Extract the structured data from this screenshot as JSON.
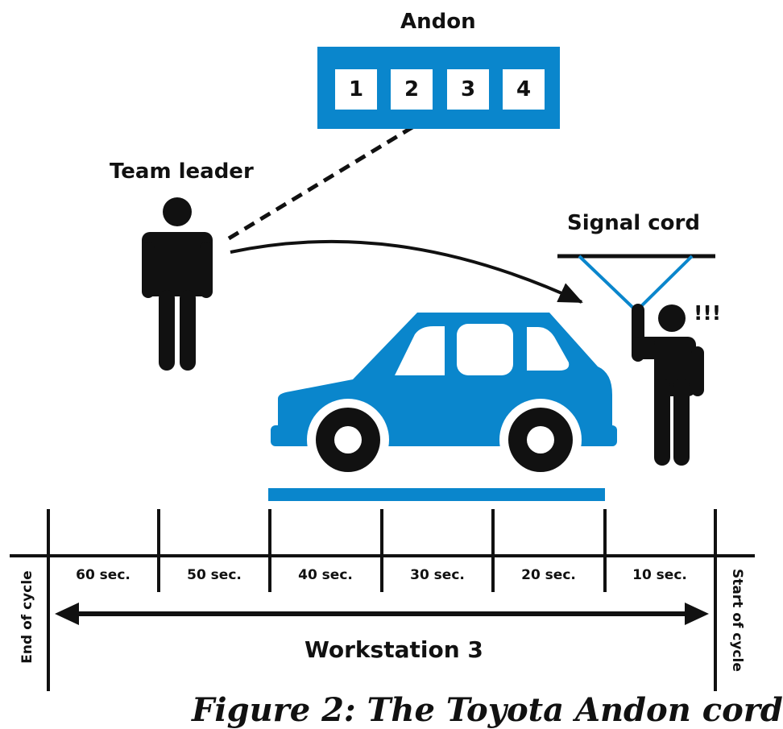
{
  "andon": {
    "title": "Andon",
    "boxes": [
      "1",
      "2",
      "3",
      "4"
    ]
  },
  "team_leader": {
    "label": "Team leader"
  },
  "signal_cord": {
    "label": "Signal cord"
  },
  "alert": {
    "text": "!!!"
  },
  "timeline": {
    "intervals": [
      "60 sec.",
      "50 sec.",
      "40 sec.",
      "30 sec.",
      "20 sec.",
      "10 sec."
    ],
    "end_label": "End of cycle",
    "start_label": "Start of cycle",
    "workstation_label": "Workstation 3"
  },
  "caption": {
    "text": "Figure 2: The Toyota Andon cord"
  },
  "colors": {
    "accent": "#0a86cc",
    "ink": "#111111"
  }
}
